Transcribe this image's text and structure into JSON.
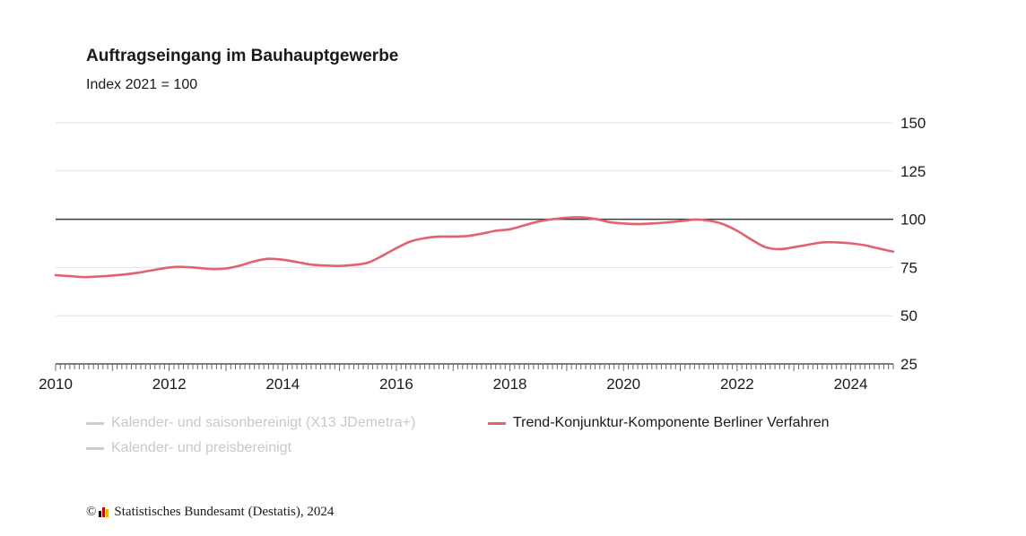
{
  "chart_data": {
    "type": "line",
    "title": "Auftragseingang im Bauhauptgewerbe",
    "subtitle": "Index 2021 = 100",
    "reference_line": 100,
    "ylim": [
      25,
      150
    ],
    "y_ticks": [
      "150",
      "125",
      "100",
      "75",
      "50",
      "25"
    ],
    "y_tick_values": [
      150,
      125,
      100,
      75,
      50,
      25
    ],
    "x_range": [
      2010.0,
      2024.75
    ],
    "x_ticks": [
      "2010",
      "2012",
      "2014",
      "2016",
      "2018",
      "2020",
      "2022",
      "2024"
    ],
    "x_tick_values": [
      2010,
      2012,
      2014,
      2016,
      2018,
      2020,
      2022,
      2024
    ],
    "grid": true,
    "legend_placement": "bottom",
    "series": [
      {
        "name": "Kalender- und saisonbereinigt (X13 JDemetra+)",
        "color": "#cccccc",
        "visible": false,
        "points": []
      },
      {
        "name": "Kalender- und preisbereinigt",
        "color": "#cccccc",
        "visible": false,
        "points": []
      },
      {
        "name": "Trend-Konjunktur-Komponente Berliner Verfahren",
        "color": "#e4606f",
        "visible": true,
        "points": [
          [
            2010.0,
            71.0
          ],
          [
            2010.25,
            70.5
          ],
          [
            2010.5,
            70.0
          ],
          [
            2010.75,
            70.3
          ],
          [
            2011.0,
            70.8
          ],
          [
            2011.25,
            71.5
          ],
          [
            2011.5,
            72.5
          ],
          [
            2011.75,
            73.8
          ],
          [
            2012.0,
            75.0
          ],
          [
            2012.25,
            75.3
          ],
          [
            2012.5,
            74.8
          ],
          [
            2012.75,
            74.2
          ],
          [
            2013.0,
            74.5
          ],
          [
            2013.25,
            76.0
          ],
          [
            2013.5,
            78.2
          ],
          [
            2013.75,
            79.5
          ],
          [
            2014.0,
            79.0
          ],
          [
            2014.25,
            77.8
          ],
          [
            2014.5,
            76.5
          ],
          [
            2014.75,
            76.0
          ],
          [
            2015.0,
            75.8
          ],
          [
            2015.25,
            76.3
          ],
          [
            2015.5,
            77.5
          ],
          [
            2015.75,
            81.0
          ],
          [
            2016.0,
            85.0
          ],
          [
            2016.25,
            88.5
          ],
          [
            2016.5,
            90.2
          ],
          [
            2016.75,
            91.0
          ],
          [
            2017.0,
            91.0
          ],
          [
            2017.25,
            91.3
          ],
          [
            2017.5,
            92.5
          ],
          [
            2017.75,
            94.0
          ],
          [
            2018.0,
            94.8
          ],
          [
            2018.25,
            96.8
          ],
          [
            2018.5,
            98.8
          ],
          [
            2018.75,
            100.0
          ],
          [
            2019.0,
            100.8
          ],
          [
            2019.25,
            101.0
          ],
          [
            2019.5,
            100.2
          ],
          [
            2019.75,
            98.5
          ],
          [
            2020.0,
            97.8
          ],
          [
            2020.25,
            97.5
          ],
          [
            2020.5,
            97.8
          ],
          [
            2020.75,
            98.3
          ],
          [
            2021.0,
            99.0
          ],
          [
            2021.25,
            99.8
          ],
          [
            2021.5,
            99.3
          ],
          [
            2021.75,
            97.5
          ],
          [
            2022.0,
            94.0
          ],
          [
            2022.25,
            89.5
          ],
          [
            2022.5,
            85.5
          ],
          [
            2022.75,
            84.5
          ],
          [
            2023.0,
            85.5
          ],
          [
            2023.25,
            86.8
          ],
          [
            2023.5,
            88.0
          ],
          [
            2023.75,
            88.0
          ],
          [
            2024.0,
            87.5
          ],
          [
            2024.25,
            86.5
          ],
          [
            2024.5,
            84.8
          ],
          [
            2024.75,
            83.2
          ]
        ]
      }
    ]
  },
  "footer": {
    "copyright_symbol": "©",
    "source": "Statistisches Bundesamt (Destatis), 2024",
    "logo_colors": [
      "#000000",
      "#d00000",
      "#f0b400"
    ]
  }
}
